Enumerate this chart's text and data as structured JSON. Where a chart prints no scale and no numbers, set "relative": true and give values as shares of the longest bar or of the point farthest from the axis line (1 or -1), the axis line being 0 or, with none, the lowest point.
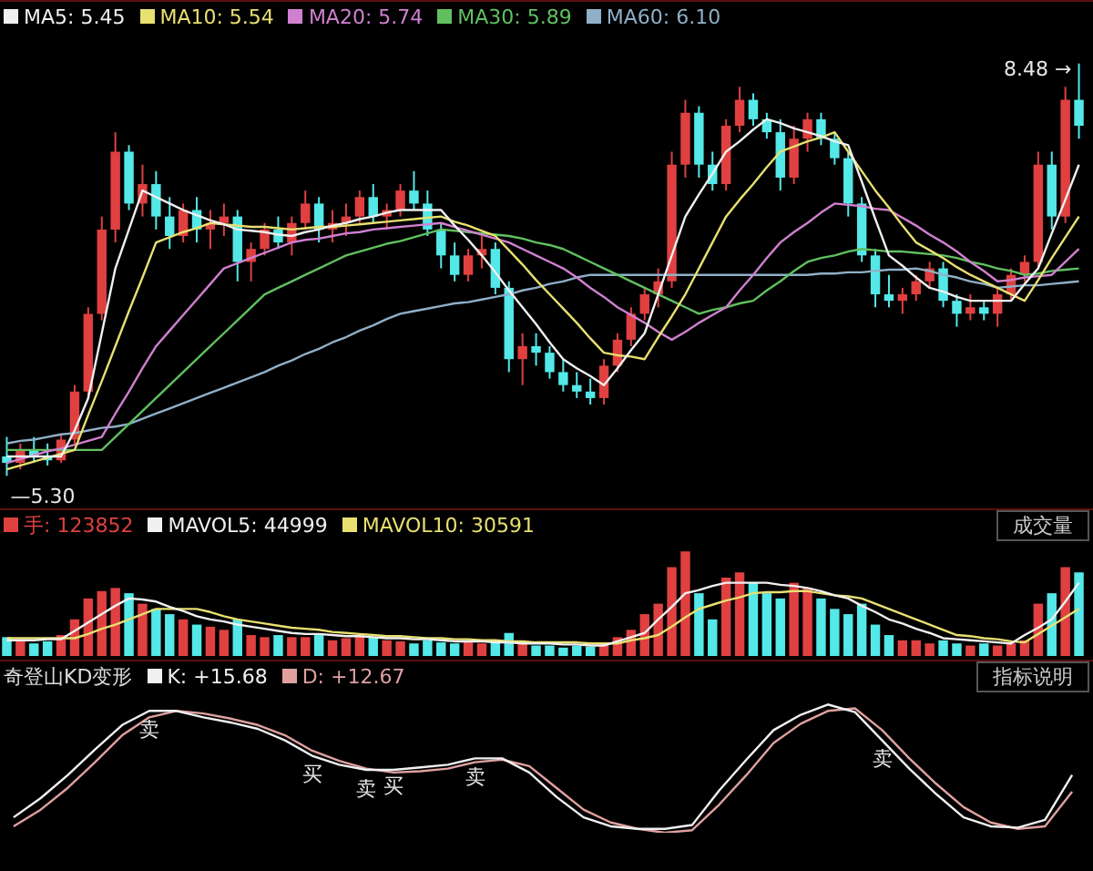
{
  "chart_data": [
    {
      "type": "candlestick",
      "legend": "top left",
      "tick_labels": false,
      "categories": [
        null,
        null,
        null,
        null,
        null,
        null,
        null,
        null,
        null,
        null,
        null,
        null,
        null,
        null,
        null,
        null,
        null,
        null,
        null,
        null,
        null,
        null,
        null,
        null,
        null,
        null,
        null,
        null,
        null,
        null,
        null,
        null,
        null,
        null,
        null,
        null,
        null,
        null,
        null,
        null,
        null,
        null,
        null,
        null,
        null,
        null,
        null,
        null,
        null,
        null,
        null,
        null,
        null,
        null,
        null,
        null,
        null,
        null,
        null,
        null,
        null,
        null,
        null,
        null,
        null,
        null,
        null,
        null,
        null,
        null,
        null,
        null,
        null,
        null,
        null,
        null,
        null,
        null,
        null,
        null
      ],
      "ohlc": [
        [
          5.45,
          5.6,
          5.3,
          5.4
        ],
        [
          5.4,
          5.55,
          5.35,
          5.5
        ],
        [
          5.5,
          5.6,
          5.4,
          5.45
        ],
        [
          5.45,
          5.55,
          5.38,
          5.42
        ],
        [
          5.42,
          5.62,
          5.4,
          5.58
        ],
        [
          5.58,
          6.0,
          5.55,
          5.95
        ],
        [
          5.95,
          6.6,
          5.9,
          6.55
        ],
        [
          6.55,
          7.3,
          6.5,
          7.2
        ],
        [
          7.2,
          7.95,
          7.1,
          7.8
        ],
        [
          7.8,
          7.85,
          7.35,
          7.4
        ],
        [
          7.4,
          7.7,
          7.3,
          7.55
        ],
        [
          7.55,
          7.65,
          7.2,
          7.3
        ],
        [
          7.3,
          7.45,
          7.05,
          7.15
        ],
        [
          7.15,
          7.4,
          7.1,
          7.35
        ],
        [
          7.35,
          7.45,
          7.1,
          7.2
        ],
        [
          7.2,
          7.35,
          7.05,
          7.25
        ],
        [
          7.25,
          7.4,
          7.15,
          7.3
        ],
        [
          7.3,
          7.35,
          6.8,
          6.95
        ],
        [
          6.95,
          7.1,
          6.8,
          7.05
        ],
        [
          7.05,
          7.25,
          7.0,
          7.2
        ],
        [
          7.2,
          7.3,
          7.05,
          7.1
        ],
        [
          7.1,
          7.3,
          7.0,
          7.25
        ],
        [
          7.25,
          7.5,
          7.2,
          7.4
        ],
        [
          7.4,
          7.45,
          7.1,
          7.2
        ],
        [
          7.2,
          7.35,
          7.1,
          7.25
        ],
        [
          7.25,
          7.4,
          7.15,
          7.3
        ],
        [
          7.3,
          7.5,
          7.25,
          7.45
        ],
        [
          7.45,
          7.55,
          7.25,
          7.3
        ],
        [
          7.3,
          7.4,
          7.2,
          7.35
        ],
        [
          7.35,
          7.55,
          7.3,
          7.5
        ],
        [
          7.5,
          7.65,
          7.35,
          7.4
        ],
        [
          7.4,
          7.5,
          7.15,
          7.2
        ],
        [
          7.2,
          7.25,
          6.9,
          7.0
        ],
        [
          7.0,
          7.1,
          6.8,
          6.85
        ],
        [
          6.85,
          7.05,
          6.8,
          7.0
        ],
        [
          7.0,
          7.15,
          6.9,
          7.05
        ],
        [
          7.05,
          7.1,
          6.7,
          6.75
        ],
        [
          6.75,
          6.8,
          6.1,
          6.2
        ],
        [
          6.2,
          6.4,
          6.0,
          6.3
        ],
        [
          6.3,
          6.4,
          6.15,
          6.25
        ],
        [
          6.25,
          6.3,
          6.05,
          6.1
        ],
        [
          6.1,
          6.2,
          5.95,
          6.0
        ],
        [
          6.0,
          6.1,
          5.9,
          5.95
        ],
        [
          5.95,
          6.05,
          5.85,
          5.9
        ],
        [
          5.9,
          6.2,
          5.85,
          6.15
        ],
        [
          6.15,
          6.4,
          6.1,
          6.35
        ],
        [
          6.35,
          6.6,
          6.3,
          6.55
        ],
        [
          6.55,
          6.75,
          6.5,
          6.7
        ],
        [
          6.7,
          6.9,
          6.6,
          6.8
        ],
        [
          6.8,
          7.8,
          6.75,
          7.7
        ],
        [
          7.7,
          8.2,
          7.6,
          8.1
        ],
        [
          8.1,
          8.15,
          7.6,
          7.7
        ],
        [
          7.7,
          7.8,
          7.5,
          7.55
        ],
        [
          7.55,
          8.05,
          7.5,
          8.0
        ],
        [
          8.0,
          8.3,
          7.95,
          8.2
        ],
        [
          8.2,
          8.25,
          8.0,
          8.05
        ],
        [
          8.05,
          8.1,
          7.9,
          7.95
        ],
        [
          7.95,
          8.05,
          7.5,
          7.6
        ],
        [
          7.6,
          8.0,
          7.55,
          7.9
        ],
        [
          7.9,
          8.1,
          7.8,
          8.05
        ],
        [
          8.05,
          8.1,
          7.85,
          7.9
        ],
        [
          7.9,
          7.95,
          7.7,
          7.75
        ],
        [
          7.75,
          7.8,
          7.3,
          7.4
        ],
        [
          7.4,
          7.45,
          6.95,
          7.0
        ],
        [
          7.0,
          7.05,
          6.6,
          6.7
        ],
        [
          6.7,
          6.85,
          6.6,
          6.65
        ],
        [
          6.65,
          6.75,
          6.55,
          6.7
        ],
        [
          6.7,
          6.85,
          6.65,
          6.8
        ],
        [
          6.8,
          6.95,
          6.75,
          6.9
        ],
        [
          6.9,
          6.95,
          6.6,
          6.65
        ],
        [
          6.65,
          6.7,
          6.45,
          6.55
        ],
        [
          6.55,
          6.7,
          6.5,
          6.6
        ],
        [
          6.6,
          6.65,
          6.5,
          6.55
        ],
        [
          6.55,
          6.75,
          6.45,
          6.7
        ],
        [
          6.7,
          6.9,
          6.65,
          6.85
        ],
        [
          6.85,
          7.0,
          6.8,
          6.95
        ],
        [
          6.95,
          7.8,
          6.9,
          7.7
        ],
        [
          7.7,
          7.8,
          7.2,
          7.3
        ],
        [
          7.3,
          8.3,
          7.25,
          8.2
        ],
        [
          8.2,
          8.48,
          7.9,
          8.0
        ]
      ],
      "colors": [
        "#54e8e8",
        "#e04040",
        "#54e8e8",
        "#54e8e8",
        "#e04040",
        "#e04040",
        "#e04040",
        "#e04040",
        "#e04040",
        "#54e8e8",
        "#e04040",
        "#54e8e8",
        "#54e8e8",
        "#e04040",
        "#54e8e8",
        "#e04040",
        "#e04040",
        "#54e8e8",
        "#e04040",
        "#e04040",
        "#54e8e8",
        "#e04040",
        "#e04040",
        "#54e8e8",
        "#e04040",
        "#e04040",
        "#e04040",
        "#54e8e8",
        "#e04040",
        "#e04040",
        "#54e8e8",
        "#54e8e8",
        "#54e8e8",
        "#54e8e8",
        "#e04040",
        "#e04040",
        "#54e8e8",
        "#54e8e8",
        "#e04040",
        "#54e8e8",
        "#54e8e8",
        "#54e8e8",
        "#54e8e8",
        "#54e8e8",
        "#e04040",
        "#e04040",
        "#e04040",
        "#e04040",
        "#e04040",
        "#e04040",
        "#e04040",
        "#54e8e8",
        "#54e8e8",
        "#e04040",
        "#e04040",
        "#54e8e8",
        "#54e8e8",
        "#54e8e8",
        "#e04040",
        "#e04040",
        "#54e8e8",
        "#54e8e8",
        "#54e8e8",
        "#54e8e8",
        "#54e8e8",
        "#54e8e8",
        "#e04040",
        "#e04040",
        "#e04040",
        "#54e8e8",
        "#54e8e8",
        "#e04040",
        "#54e8e8",
        "#e04040",
        "#e04040",
        "#e04040",
        "#e04040",
        "#54e8e8",
        "#e04040",
        "#54e8e8"
      ],
      "annotations": [
        "8.48 →",
        "—5.30"
      ],
      "series": [
        {
          "type": "line",
          "name": "MA5: 5.45",
          "color": "#f0f0f0",
          "values": [
            5.45,
            5.45,
            5.45,
            5.45,
            5.45,
            5.65,
            5.9,
            6.4,
            6.9,
            7.2,
            7.5,
            7.45,
            7.4,
            7.35,
            7.31,
            7.27,
            7.24,
            7.2,
            7.19,
            7.18,
            7.16,
            7.15,
            7.18,
            7.2,
            7.23,
            7.25,
            7.28,
            7.3,
            7.33,
            7.35,
            7.35,
            7.35,
            7.35,
            7.23,
            7.12,
            7.0,
            6.87,
            6.73,
            6.6,
            6.47,
            6.33,
            6.2,
            6.13,
            6.07,
            6.0,
            6.13,
            6.27,
            6.4,
            6.7,
            7.0,
            7.3,
            7.47,
            7.63,
            7.8,
            7.88,
            7.97,
            8.05,
            8.02,
            7.98,
            7.95,
            7.92,
            7.88,
            7.85,
            7.57,
            7.28,
            7.0,
            6.92,
            6.83,
            6.75,
            6.72,
            6.68,
            6.65,
            6.65,
            6.65,
            6.65,
            6.78,
            6.9,
            7.17,
            7.43,
            7.7
          ]
        },
        {
          "type": "line",
          "name": "MA10: 5.54",
          "color": "#e8e070",
          "values": [
            5.35,
            5.38,
            5.41,
            5.44,
            5.47,
            5.5,
            5.77,
            6.03,
            6.3,
            6.57,
            6.83,
            7.1,
            7.14,
            7.18,
            7.21,
            7.25,
            7.24,
            7.23,
            7.22,
            7.22,
            7.21,
            7.2,
            7.21,
            7.22,
            7.22,
            7.23,
            7.24,
            7.25,
            7.26,
            7.27,
            7.28,
            7.29,
            7.3,
            7.26,
            7.23,
            7.19,
            7.15,
            7.04,
            6.93,
            6.81,
            6.7,
            6.59,
            6.48,
            6.36,
            6.25,
            6.23,
            6.22,
            6.2,
            6.37,
            6.53,
            6.7,
            6.9,
            7.1,
            7.3,
            7.43,
            7.55,
            7.68,
            7.8,
            7.84,
            7.88,
            7.91,
            7.95,
            7.8,
            7.65,
            7.5,
            7.37,
            7.23,
            7.1,
            7.04,
            6.98,
            6.91,
            6.85,
            6.8,
            6.75,
            6.7,
            6.65,
            6.81,
            6.98,
            7.14,
            7.3
          ]
        },
        {
          "type": "line",
          "name": "MA20: 5.74",
          "color": "#d080d0",
          "values": [
            5.4,
            5.43,
            5.46,
            5.49,
            5.51,
            5.54,
            5.57,
            5.6,
            5.78,
            5.95,
            6.13,
            6.3,
            6.42,
            6.54,
            6.66,
            6.78,
            6.9,
            6.94,
            6.98,
            7.02,
            7.06,
            7.1,
            7.12,
            7.13,
            7.15,
            7.17,
            7.18,
            7.2,
            7.21,
            7.22,
            7.23,
            7.24,
            7.25,
            7.22,
            7.19,
            7.16,
            7.13,
            7.1,
            7.05,
            7.0,
            6.95,
            6.9,
            6.83,
            6.75,
            6.68,
            6.6,
            6.54,
            6.48,
            6.41,
            6.35,
            6.41,
            6.48,
            6.54,
            6.6,
            6.73,
            6.85,
            6.98,
            7.1,
            7.18,
            7.25,
            7.33,
            7.4,
            7.39,
            7.38,
            7.36,
            7.35,
            7.29,
            7.23,
            7.16,
            7.1,
            7.03,
            6.95,
            6.88,
            6.8,
            6.81,
            6.83,
            6.84,
            6.85,
            6.95,
            7.05
          ]
        },
        {
          "type": "line",
          "name": "MA30: 5.89",
          "color": "#60c060",
          "values": [
            5.5,
            5.5,
            5.5,
            5.5,
            5.5,
            5.5,
            5.5,
            5.5,
            5.6,
            5.7,
            5.8,
            5.9,
            6.0,
            6.1,
            6.2,
            6.3,
            6.4,
            6.5,
            6.6,
            6.7,
            6.75,
            6.8,
            6.85,
            6.9,
            6.95,
            7.0,
            7.03,
            7.06,
            7.09,
            7.11,
            7.14,
            7.17,
            7.2,
            7.19,
            7.18,
            7.17,
            7.16,
            7.15,
            7.13,
            7.1,
            7.08,
            7.05,
            7.0,
            6.95,
            6.9,
            6.85,
            6.8,
            6.75,
            6.7,
            6.65,
            6.6,
            6.55,
            6.58,
            6.6,
            6.63,
            6.65,
            6.73,
            6.8,
            6.88,
            6.95,
            6.98,
            7.0,
            7.03,
            7.05,
            7.04,
            7.03,
            7.03,
            7.02,
            7.01,
            7.0,
            6.98,
            6.95,
            6.93,
            6.9,
            6.88,
            6.85,
            6.86,
            6.88,
            6.89,
            6.9
          ]
        },
        {
          "type": "line",
          "name": "MA60: 6.10",
          "color": "#8fb0c8",
          "values": [
            5.55,
            5.57,
            5.58,
            5.6,
            5.62,
            5.63,
            5.65,
            5.67,
            5.68,
            5.7,
            5.74,
            5.78,
            5.82,
            5.86,
            5.9,
            5.94,
            5.98,
            6.02,
            6.06,
            6.1,
            6.15,
            6.19,
            6.24,
            6.28,
            6.33,
            6.37,
            6.42,
            6.46,
            6.51,
            6.55,
            6.57,
            6.59,
            6.61,
            6.63,
            6.64,
            6.66,
            6.68,
            6.7,
            6.73,
            6.75,
            6.78,
            6.8,
            6.83,
            6.85,
            6.85,
            6.85,
            6.85,
            6.85,
            6.85,
            6.85,
            6.85,
            6.85,
            6.85,
            6.85,
            6.85,
            6.85,
            6.85,
            6.85,
            6.85,
            6.85,
            6.86,
            6.86,
            6.87,
            6.87,
            6.88,
            6.89,
            6.89,
            6.9,
            6.88,
            6.85,
            6.83,
            6.8,
            6.78,
            6.75,
            6.76,
            6.77,
            6.77,
            6.78,
            6.79,
            6.8
          ]
        }
      ]
    },
    {
      "type": "bar",
      "relative": true,
      "legend": "top left",
      "tick_labels": false,
      "annotations": [
        "成交量"
      ],
      "categories": [
        null,
        null,
        null,
        null,
        null,
        null,
        null,
        null,
        null,
        null,
        null,
        null,
        null,
        null,
        null,
        null,
        null,
        null,
        null,
        null,
        null,
        null,
        null,
        null,
        null,
        null,
        null,
        null,
        null,
        null,
        null,
        null,
        null,
        null,
        null,
        null,
        null,
        null,
        null,
        null,
        null,
        null,
        null,
        null,
        null,
        null,
        null,
        null,
        null,
        null,
        null,
        null,
        null,
        null,
        null,
        null,
        null,
        null,
        null,
        null,
        null,
        null,
        null,
        null,
        null,
        null,
        null,
        null,
        null,
        null,
        null,
        null,
        null,
        null,
        null,
        null,
        null,
        null,
        null,
        null
      ],
      "series": [
        {
          "name": "手: 123852",
          "color": "#e04040",
          "colors": [
            "#54e8e8",
            "#e04040",
            "#54e8e8",
            "#54e8e8",
            "#e04040",
            "#e04040",
            "#e04040",
            "#e04040",
            "#e04040",
            "#54e8e8",
            "#e04040",
            "#54e8e8",
            "#54e8e8",
            "#e04040",
            "#54e8e8",
            "#e04040",
            "#e04040",
            "#54e8e8",
            "#e04040",
            "#e04040",
            "#54e8e8",
            "#e04040",
            "#e04040",
            "#54e8e8",
            "#e04040",
            "#e04040",
            "#e04040",
            "#54e8e8",
            "#e04040",
            "#e04040",
            "#54e8e8",
            "#54e8e8",
            "#54e8e8",
            "#54e8e8",
            "#e04040",
            "#e04040",
            "#54e8e8",
            "#54e8e8",
            "#e04040",
            "#54e8e8",
            "#54e8e8",
            "#54e8e8",
            "#54e8e8",
            "#54e8e8",
            "#e04040",
            "#e04040",
            "#e04040",
            "#e04040",
            "#e04040",
            "#e04040",
            "#e04040",
            "#54e8e8",
            "#54e8e8",
            "#e04040",
            "#e04040",
            "#54e8e8",
            "#54e8e8",
            "#54e8e8",
            "#e04040",
            "#e04040",
            "#54e8e8",
            "#54e8e8",
            "#54e8e8",
            "#54e8e8",
            "#54e8e8",
            "#54e8e8",
            "#e04040",
            "#e04040",
            "#e04040",
            "#54e8e8",
            "#54e8e8",
            "#e04040",
            "#54e8e8",
            "#e04040",
            "#e04040",
            "#e04040",
            "#e04040",
            "#54e8e8",
            "#e04040",
            "#54e8e8"
          ],
          "values": [
            0.18,
            0.15,
            0.12,
            0.14,
            0.2,
            0.35,
            0.55,
            0.62,
            0.65,
            0.6,
            0.5,
            0.45,
            0.4,
            0.35,
            0.3,
            0.28,
            0.25,
            0.35,
            0.2,
            0.18,
            0.2,
            0.18,
            0.18,
            0.2,
            0.15,
            0.17,
            0.2,
            0.18,
            0.15,
            0.14,
            0.12,
            0.15,
            0.13,
            0.12,
            0.14,
            0.12,
            0.15,
            0.22,
            0.12,
            0.1,
            0.1,
            0.08,
            0.1,
            0.09,
            0.12,
            0.18,
            0.25,
            0.4,
            0.5,
            0.85,
            1.0,
            0.6,
            0.35,
            0.75,
            0.8,
            0.7,
            0.6,
            0.55,
            0.7,
            0.65,
            0.55,
            0.45,
            0.4,
            0.5,
            0.3,
            0.2,
            0.15,
            0.15,
            0.12,
            0.15,
            0.12,
            0.1,
            0.12,
            0.1,
            0.12,
            0.15,
            0.5,
            0.6,
            0.85,
            0.8
          ]
        },
        {
          "type": "line",
          "name": "MAVOL5: 44999",
          "color": "#f0f0f0",
          "values": [
            0.15,
            0.15,
            0.15,
            0.16,
            0.16,
            0.24,
            0.32,
            0.4,
            0.48,
            0.55,
            0.54,
            0.52,
            0.47,
            0.43,
            0.38,
            0.35,
            0.33,
            0.3,
            0.28,
            0.26,
            0.24,
            0.22,
            0.21,
            0.21,
            0.2,
            0.19,
            0.19,
            0.18,
            0.17,
            0.17,
            0.16,
            0.16,
            0.15,
            0.14,
            0.14,
            0.14,
            0.13,
            0.13,
            0.12,
            0.12,
            0.12,
            0.11,
            0.11,
            0.1,
            0.1,
            0.14,
            0.18,
            0.22,
            0.35,
            0.47,
            0.6,
            0.63,
            0.67,
            0.7,
            0.7,
            0.7,
            0.7,
            0.68,
            0.67,
            0.65,
            0.62,
            0.58,
            0.55,
            0.48,
            0.42,
            0.35,
            0.31,
            0.26,
            0.22,
            0.17,
            0.16,
            0.15,
            0.14,
            0.13,
            0.12,
            0.2,
            0.27,
            0.35,
            0.52,
            0.7
          ]
        },
        {
          "type": "line",
          "name": "MAVOL10: 30591",
          "color": "#e8e070",
          "values": [
            0.17,
            0.17,
            0.17,
            0.17,
            0.17,
            0.17,
            0.21,
            0.26,
            0.3,
            0.35,
            0.4,
            0.45,
            0.45,
            0.45,
            0.45,
            0.42,
            0.38,
            0.35,
            0.33,
            0.31,
            0.29,
            0.27,
            0.26,
            0.25,
            0.23,
            0.22,
            0.21,
            0.2,
            0.19,
            0.19,
            0.18,
            0.17,
            0.17,
            0.16,
            0.16,
            0.15,
            0.15,
            0.14,
            0.14,
            0.13,
            0.13,
            0.13,
            0.13,
            0.12,
            0.12,
            0.12,
            0.15,
            0.17,
            0.2,
            0.28,
            0.37,
            0.45,
            0.49,
            0.53,
            0.56,
            0.6,
            0.61,
            0.61,
            0.62,
            0.62,
            0.6,
            0.58,
            0.57,
            0.55,
            0.5,
            0.45,
            0.4,
            0.35,
            0.3,
            0.25,
            0.2,
            0.19,
            0.17,
            0.16,
            0.14,
            0.13,
            0.21,
            0.29,
            0.37,
            0.45
          ]
        }
      ]
    },
    {
      "type": "line",
      "relative": true,
      "title": "奇登山KD变形",
      "legend": "top left",
      "tick_labels": false,
      "categories": [
        null,
        null,
        null,
        null,
        null,
        null,
        null,
        null,
        null,
        null,
        null,
        null,
        null,
        null,
        null,
        null,
        null,
        null,
        null,
        null,
        null,
        null,
        null,
        null,
        null,
        null,
        null,
        null,
        null,
        null,
        null,
        null,
        null,
        null,
        null,
        null,
        null,
        null,
        null,
        null
      ],
      "annotations": [
        "指标说明",
        {
          "text": "卖",
          "y": 0.95
        },
        {
          "text": "买",
          "y": 0.6
        },
        {
          "text": "卖",
          "y": 0.49
        },
        {
          "text": "买",
          "y": 0.51
        },
        {
          "text": "卖",
          "y": 0.58
        },
        {
          "text": "卖",
          "y": 0.72
        }
      ],
      "series": [
        {
          "name": "K: +15.68",
          "color": "#f0f0f0",
          "values": [
            0.12,
            0.27,
            0.45,
            0.65,
            0.84,
            0.95,
            0.95,
            0.9,
            0.86,
            0.81,
            0.72,
            0.6,
            0.53,
            0.49,
            0.49,
            0.51,
            0.53,
            0.58,
            0.58,
            0.47,
            0.28,
            0.12,
            0.05,
            0.03,
            0.03,
            0.06,
            0.33,
            0.57,
            0.8,
            0.92,
            1.0,
            0.94,
            0.72,
            0.5,
            0.3,
            0.12,
            0.05,
            0.04,
            0.1,
            0.45
          ]
        },
        {
          "name": "D: +12.67",
          "color": "#e0a0a0",
          "values": [
            0.05,
            0.18,
            0.35,
            0.55,
            0.76,
            0.9,
            0.95,
            0.93,
            0.89,
            0.84,
            0.76,
            0.64,
            0.56,
            0.5,
            0.47,
            0.48,
            0.5,
            0.55,
            0.57,
            0.52,
            0.35,
            0.18,
            0.08,
            0.03,
            0.0,
            0.02,
            0.22,
            0.45,
            0.7,
            0.85,
            0.95,
            0.97,
            0.8,
            0.58,
            0.38,
            0.2,
            0.08,
            0.03,
            0.05,
            0.32
          ]
        }
      ]
    }
  ]
}
